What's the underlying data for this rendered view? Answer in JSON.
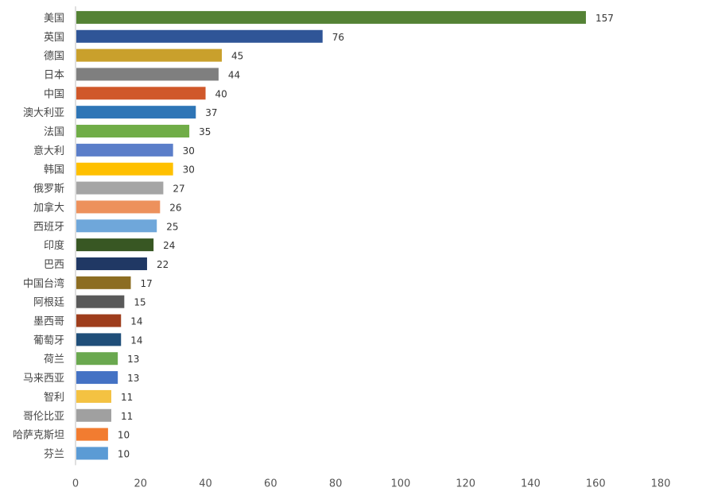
{
  "chart_data": {
    "type": "bar",
    "orientation": "horizontal",
    "title": "",
    "xlabel": "",
    "ylabel": "",
    "xlim": [
      0,
      180
    ],
    "x_ticks": [
      0,
      20,
      40,
      60,
      80,
      100,
      120,
      140,
      160,
      180
    ],
    "grid": false,
    "legend": "none",
    "categories": [
      "美国",
      "英国",
      "德国",
      "日本",
      "中国",
      "澳大利亚",
      "法国",
      "意大利",
      "韩国",
      "俄罗斯",
      "加拿大",
      "西班牙",
      "印度",
      "巴西",
      "中国台湾",
      "阿根廷",
      "墨西哥",
      "葡萄牙",
      "荷兰",
      "马来西亚",
      "智利",
      "哥伦比亚",
      "哈萨克斯坦",
      "芬兰"
    ],
    "values": [
      157,
      76,
      45,
      44,
      40,
      37,
      35,
      30,
      30,
      27,
      26,
      25,
      24,
      22,
      17,
      15,
      14,
      14,
      13,
      13,
      11,
      11,
      10,
      10
    ],
    "bar_colors": [
      "#548235",
      "#2f5597",
      "#c9a02c",
      "#7f7f7f",
      "#d0582a",
      "#2e75b6",
      "#70ad47",
      "#5b7ec9",
      "#ffc000",
      "#a5a5a5",
      "#ed915c",
      "#6fa7da",
      "#385723",
      "#203864",
      "#8c6d22",
      "#595959",
      "#9e3d1c",
      "#1f4e79",
      "#6aa84f",
      "#4472c4",
      "#f4c242",
      "#a0a0a0",
      "#f27c30",
      "#5b9bd5"
    ]
  }
}
